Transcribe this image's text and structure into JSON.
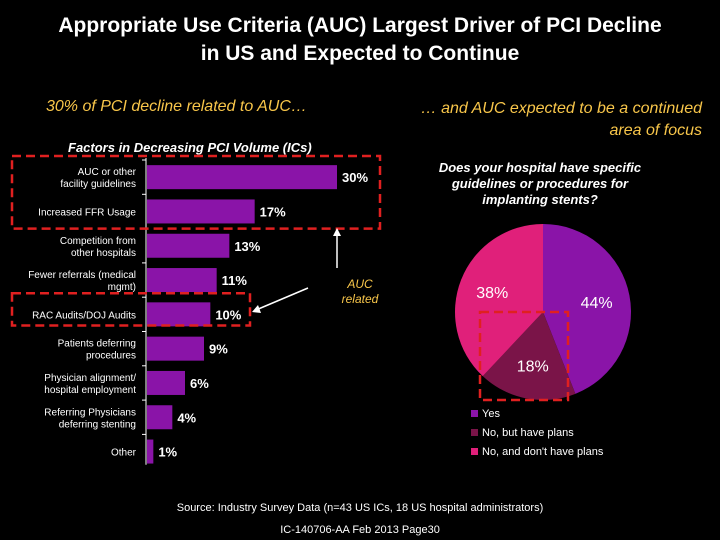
{
  "slide": {
    "title_line1": "Appropriate Use Criteria (AUC) Largest Driver of PCI Decline",
    "title_line2": "in US and Expected to Continue",
    "left_heading": "30% of PCI decline related to AUC…",
    "right_heading": "… and AUC expected to be a continued area of focus",
    "source": "Source: Industry Survey Data (n=43 US ICs, 18 US hospital administrators)",
    "footer_id": "IC-140706-AA Feb 2013 Page30"
  },
  "colors": {
    "bar": "#8a14a8",
    "highlight": "#e02020",
    "heading": "#f8c64a",
    "pie_yes": "#8a14a8",
    "pie_plans": "#7a1448",
    "pie_no": "#e0207a"
  },
  "chart_data": [
    {
      "type": "bar",
      "orientation": "horizontal",
      "title": "Factors in Decreasing PCI Volume (ICs)",
      "categories": [
        [
          "AUC or other",
          "facility guidelines"
        ],
        [
          "Increased FFR Usage"
        ],
        [
          "Competition from",
          "other hospitals"
        ],
        [
          "Fewer referrals (medical",
          "mgmt)"
        ],
        [
          "RAC Audits/DOJ Audits"
        ],
        [
          "Patients deferring",
          "procedures"
        ],
        [
          "Physician alignment/",
          "hospital employment"
        ],
        [
          "Referring Physicians",
          "deferring stenting"
        ],
        [
          "Other"
        ]
      ],
      "values": [
        30,
        17,
        13,
        11,
        10,
        9,
        6,
        4,
        1
      ],
      "value_labels": [
        "30%",
        "17%",
        "13%",
        "11%",
        "10%",
        "9%",
        "6%",
        "4%",
        "1%"
      ],
      "xlim": [
        0,
        30
      ],
      "annotation": "AUC related",
      "highlighted_categories": [
        0,
        1,
        4
      ]
    },
    {
      "type": "pie",
      "title": "Does your hospital have specific guidelines or procedures for implanting stents?",
      "title_lines": [
        "Does your hospital have specific",
        "guidelines or procedures for",
        "implanting stents?"
      ],
      "slices": [
        {
          "label": "Yes",
          "value": 44,
          "value_label": "44%"
        },
        {
          "label": "No, but have plans",
          "value": 18,
          "value_label": "18%"
        },
        {
          "label": "No, and don't have plans",
          "value": 38,
          "value_label": "38%"
        }
      ],
      "legend_placement": "bottom"
    }
  ]
}
